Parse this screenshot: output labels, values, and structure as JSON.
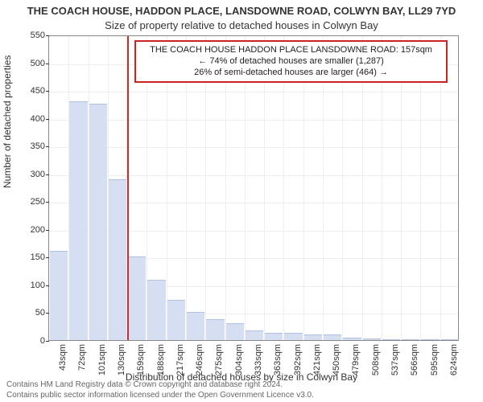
{
  "title_line1": "THE COACH HOUSE, HADDON PLACE, LANSDOWNE ROAD, COLWYN BAY, LL29 7YD",
  "title_line2": "Size of property relative to detached houses in Colwyn Bay",
  "ylabel": "Number of detached properties",
  "xlabel": "Distribution of detached houses by size in Colwyn Bay",
  "footer_line1": "Contains HM Land Registry data © Crown copyright and database right 2024.",
  "footer_line2": "Contains public sector information licensed under the Open Government Licence v3.0.",
  "chart": {
    "type": "histogram",
    "ylim": [
      0,
      550
    ],
    "ytick_step": 50,
    "bar_color": "#d6dff2",
    "bar_border": "#b0c0e0",
    "grid_color": "#eeeeee",
    "axis_color": "#888888",
    "background": "#ffffff",
    "reference_line": {
      "x_index": 4,
      "color": "#dd2222",
      "width": 2
    },
    "categories": [
      "43sqm",
      "72sqm",
      "101sqm",
      "130sqm",
      "159sqm",
      "188sqm",
      "217sqm",
      "246sqm",
      "275sqm",
      "304sqm",
      "333sqm",
      "363sqm",
      "392sqm",
      "421sqm",
      "450sqm",
      "479sqm",
      "508sqm",
      "537sqm",
      "566sqm",
      "595sqm",
      "624sqm"
    ],
    "values": [
      160,
      430,
      425,
      290,
      150,
      108,
      72,
      50,
      37,
      30,
      17,
      13,
      13,
      10,
      10,
      5,
      3,
      2,
      2,
      2,
      2
    ]
  },
  "annotation": {
    "line1": "THE COACH HOUSE HADDON PLACE LANSDOWNE ROAD: 157sqm",
    "line2": "← 74% of detached houses are smaller (1,287)",
    "line3": "26% of semi-detached houses are larger (464) →",
    "border_color": "#cc2222",
    "fontsize": 11
  }
}
